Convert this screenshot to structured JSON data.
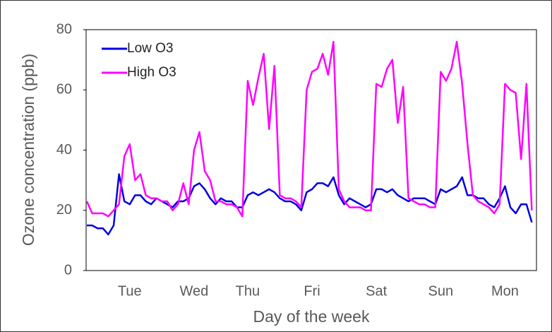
{
  "chart_data": {
    "type": "line",
    "xlabel": "Day of the week",
    "ylabel": "Ozone concentration (ppb)",
    "categories": [
      null,
      null,
      null,
      null,
      null,
      null,
      null,
      null,
      "Tue",
      null,
      null,
      null,
      null,
      null,
      null,
      null,
      null,
      null,
      null,
      null,
      "Wed",
      null,
      null,
      null,
      null,
      null,
      null,
      null,
      null,
      null,
      "Thu",
      null,
      null,
      null,
      null,
      null,
      null,
      null,
      null,
      null,
      null,
      null,
      "Fri",
      null,
      null,
      null,
      null,
      null,
      null,
      null,
      null,
      null,
      null,
      null,
      "Sat",
      null,
      null,
      null,
      null,
      null,
      null,
      null,
      null,
      null,
      null,
      null,
      "Sun",
      null,
      null,
      null,
      null,
      null,
      null,
      null,
      null,
      null,
      null,
      null,
      "Mon",
      null,
      null,
      null,
      null,
      null
    ],
    "series": [
      {
        "name": "Low O3",
        "color": "#0000e0",
        "values": [
          15,
          15,
          14,
          14,
          12,
          15,
          32,
          23,
          22,
          25,
          25,
          23,
          22,
          24,
          23,
          22,
          21,
          23,
          23,
          24,
          28,
          29,
          27,
          24,
          22,
          24,
          23,
          23,
          21,
          21,
          25,
          26,
          25,
          26,
          27,
          26,
          24,
          23,
          23,
          22,
          20,
          26,
          27,
          29,
          29,
          28,
          31,
          25,
          22,
          24,
          23,
          22,
          21,
          22,
          27,
          27,
          26,
          27,
          25,
          24,
          23,
          24,
          24,
          24,
          23,
          22,
          27,
          26,
          27,
          28,
          31,
          25,
          25,
          24,
          24,
          22,
          21,
          24,
          28,
          21,
          19,
          22,
          22,
          16
        ]
      },
      {
        "name": "High O3",
        "color": "#ff00ff",
        "values": [
          23,
          19,
          19,
          19,
          18,
          20,
          22,
          38,
          42,
          30,
          32,
          25,
          24,
          24,
          23,
          23,
          20,
          22,
          29,
          22,
          40,
          46,
          33,
          30,
          23,
          23,
          22,
          22,
          21,
          18,
          63,
          55,
          64,
          72,
          47,
          68,
          25,
          24,
          24,
          23,
          21,
          60,
          66,
          67,
          72,
          65,
          76,
          27,
          23,
          21,
          21,
          21,
          20,
          20,
          62,
          61,
          67,
          70,
          49,
          61,
          24,
          23,
          22,
          22,
          21,
          21,
          66,
          63,
          67,
          76,
          62,
          42,
          25,
          23,
          22,
          21,
          19,
          22,
          62,
          60,
          59,
          37,
          62,
          20
        ]
      }
    ],
    "ylim": [
      0,
      80
    ],
    "yticks": [
      0,
      20,
      40,
      60,
      80
    ],
    "grid": false,
    "legend": "upper left"
  }
}
